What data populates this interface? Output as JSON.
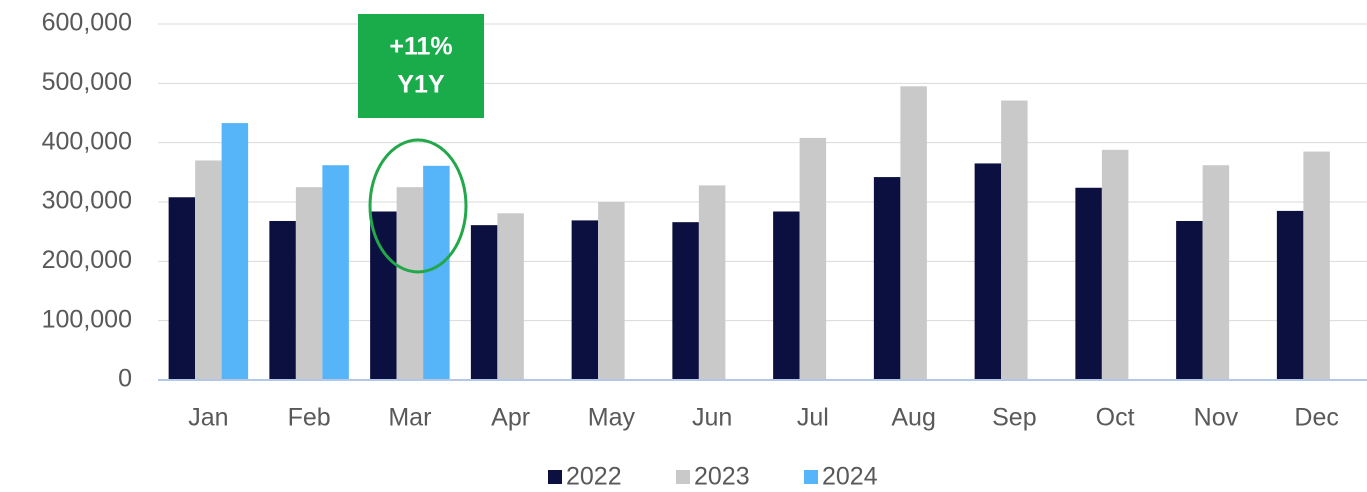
{
  "chart_data": {
    "type": "bar",
    "categories": [
      "Jan",
      "Feb",
      "Mar",
      "Apr",
      "May",
      "Jun",
      "Jul",
      "Aug",
      "Sep",
      "Oct",
      "Nov",
      "Dec"
    ],
    "series": [
      {
        "name": "2022",
        "color": "#0b1040",
        "values": [
          308000,
          268000,
          284000,
          261000,
          269000,
          266000,
          284000,
          342000,
          365000,
          324000,
          268000,
          285000
        ]
      },
      {
        "name": "2023",
        "color": "#c9c9c9",
        "values": [
          370000,
          325000,
          325000,
          281000,
          300000,
          328000,
          408000,
          495000,
          471000,
          388000,
          362000,
          385000
        ]
      },
      {
        "name": "2024",
        "color": "#56b4f8",
        "values": [
          433000,
          362000,
          361000,
          null,
          null,
          null,
          null,
          null,
          null,
          null,
          null,
          null
        ]
      }
    ],
    "ylim": [
      0,
      600000
    ],
    "yticks": [
      0,
      {
        "value": 100000,
        "label": "100,000"
      },
      {
        "value": 200000,
        "label": "200,000"
      },
      {
        "value": 300000,
        "label": "300,000"
      },
      {
        "value": 400000,
        "label": "400,000"
      },
      {
        "value": 500000,
        "label": "500,000"
      },
      {
        "value": 600000,
        "label": "600,000"
      }
    ],
    "grid": true,
    "legend": "bottom",
    "annotation": {
      "lines": [
        "+11%",
        "Y1Y"
      ],
      "color": "#1aab4b"
    }
  }
}
